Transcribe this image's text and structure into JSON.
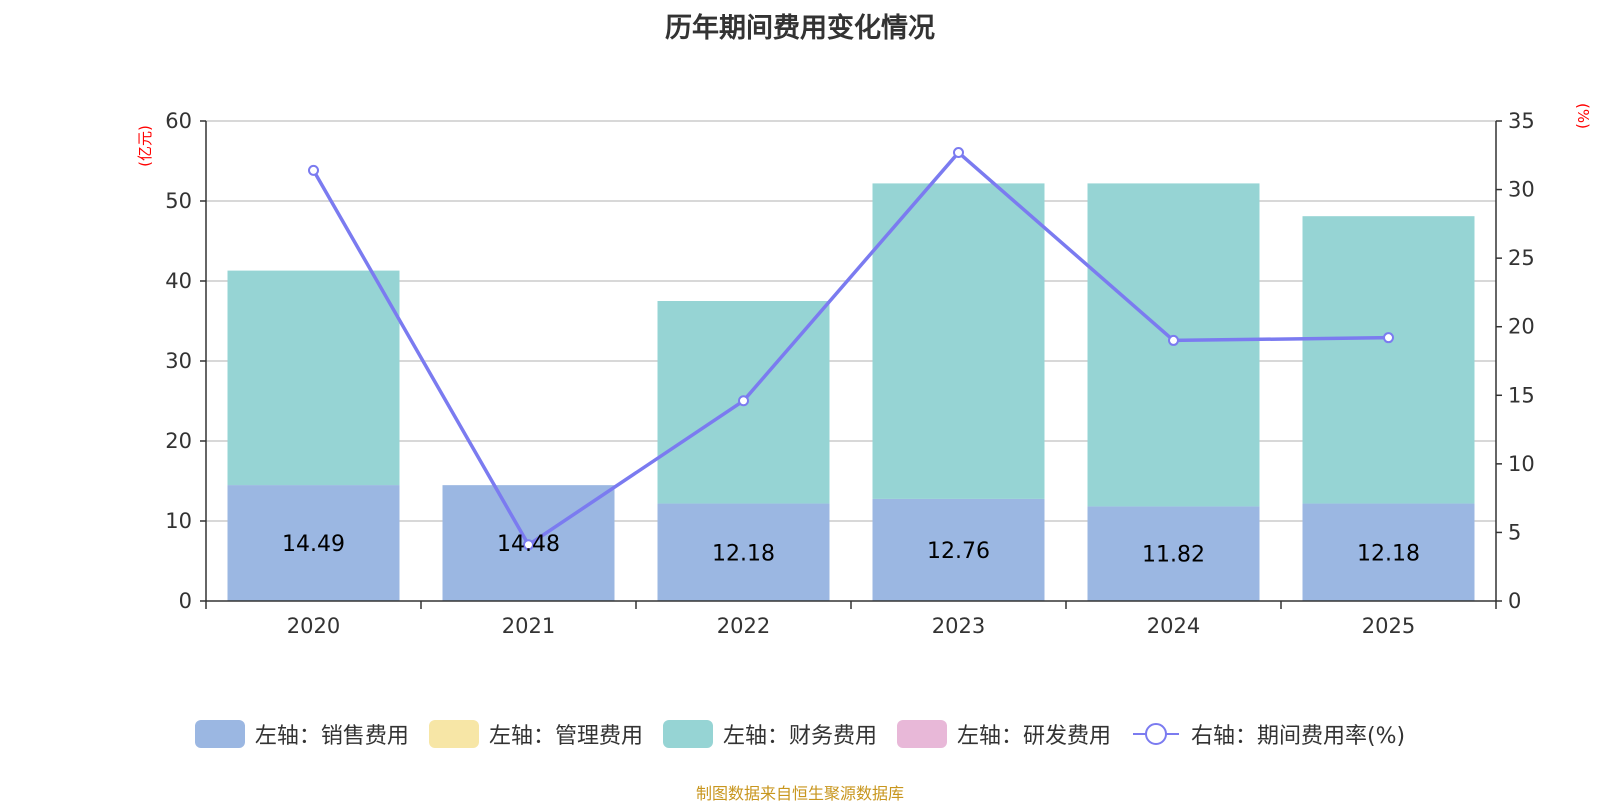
{
  "chart_data": {
    "type": "bar",
    "stacked": true,
    "title": "历年期间费用变化情况",
    "categories": [
      "2020",
      "2021",
      "2022",
      "2023",
      "2024",
      "2025"
    ],
    "left_axis": {
      "unit_label": "(亿元)",
      "ylim": [
        0,
        60
      ],
      "ticks": [
        0,
        10,
        20,
        30,
        40,
        50,
        60
      ]
    },
    "right_axis": {
      "unit_label": "(%)",
      "ylim": [
        0,
        35
      ],
      "ticks": [
        0,
        5,
        10,
        15,
        20,
        25,
        30,
        35
      ]
    },
    "series": [
      {
        "name": "左轴：销售费用",
        "axis": "left",
        "type": "bar",
        "color": "#9bb7e2",
        "values": [
          14.49,
          14.48,
          12.18,
          12.76,
          11.82,
          12.18
        ],
        "labels": [
          "14.49",
          "14.48",
          "12.18",
          "12.76",
          "11.82",
          "12.18"
        ]
      },
      {
        "name": "左轴：管理费用",
        "axis": "left",
        "type": "bar",
        "color": "#f7e6a6",
        "values": [
          0,
          0,
          0,
          0,
          0,
          0
        ]
      },
      {
        "name": "左轴：财务费用",
        "axis": "left",
        "type": "bar",
        "color": "#96d4d4",
        "values": [
          26.81,
          0,
          25.32,
          39.44,
          40.38,
          35.92
        ]
      },
      {
        "name": "左轴：研发费用",
        "axis": "left",
        "type": "bar",
        "color": "#e8b8d8",
        "values": [
          0,
          0,
          0,
          0,
          0,
          0
        ]
      },
      {
        "name": "右轴：期间费用率(%)",
        "axis": "right",
        "type": "line",
        "color": "#7b7bf0",
        "values": [
          31.4,
          4.1,
          14.6,
          32.7,
          19.0,
          19.2
        ]
      }
    ],
    "grid": true,
    "legend_position": "bottom"
  },
  "source_note": "制图数据来自恒生聚源数据库"
}
